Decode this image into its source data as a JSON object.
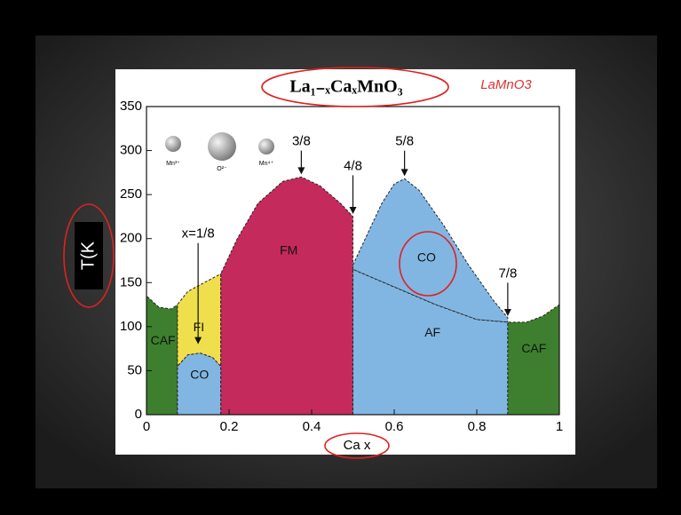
{
  "chart_data": {
    "type": "phase",
    "title": "La₁₋ₓCaₓMnO₃",
    "handwritten_note": "LaMnO3",
    "x_label": "Ca x",
    "y_label": "T(K",
    "ions": [
      "Mn³⁺",
      "O²⁻",
      "Mn⁴⁺"
    ],
    "xlim": [
      0,
      1
    ],
    "ylim": [
      0,
      350
    ],
    "xticks": [
      0,
      0.2,
      0.4,
      0.6,
      0.8,
      1
    ],
    "yticks": [
      0,
      50,
      100,
      150,
      200,
      250,
      300,
      350
    ],
    "regions": [
      {
        "name": "CAF",
        "color": "#3d7f2e",
        "x": [
          0,
          0,
          0.03,
          0.06,
          0.075,
          0.075
        ],
        "y": [
          0,
          135,
          122,
          120,
          125,
          0
        ]
      },
      {
        "name": "CO",
        "color": "#82b6e2",
        "x": [
          0.075,
          0.075,
          0.1,
          0.13,
          0.16,
          0.18,
          0.18
        ],
        "y": [
          0,
          55,
          68,
          70,
          65,
          55,
          0
        ]
      },
      {
        "name": "FI",
        "color": "#f0df4c",
        "x": [
          0.075,
          0.075,
          0.1,
          0.14,
          0.18,
          0.18,
          0.16,
          0.13,
          0.1
        ],
        "y": [
          55,
          125,
          140,
          150,
          160,
          55,
          65,
          70,
          68
        ]
      },
      {
        "name": "FM",
        "color": "#c52a5c",
        "x": [
          0.18,
          0.18,
          0.22,
          0.27,
          0.33,
          0.375,
          0.42,
          0.47,
          0.5,
          0.5
        ],
        "y": [
          0,
          160,
          200,
          240,
          265,
          270,
          260,
          240,
          225,
          0
        ]
      },
      {
        "name": "CO",
        "color": "#82b6e2",
        "x": [
          0.5,
          0.5,
          0.53,
          0.57,
          0.6,
          0.625,
          0.66,
          0.72,
          0.78,
          0.84,
          0.875,
          0.875,
          0.8,
          0.7,
          0.6
        ],
        "y": [
          165,
          170,
          200,
          240,
          262,
          268,
          255,
          215,
          170,
          130,
          110,
          105,
          108,
          125,
          145
        ]
      },
      {
        "name": "AF",
        "color": "#82b6e2",
        "x": [
          0.5,
          0.5,
          0.6,
          0.7,
          0.8,
          0.875,
          0.875
        ],
        "y": [
          0,
          165,
          145,
          125,
          108,
          105,
          0
        ]
      },
      {
        "name": "CAF",
        "color": "#3d7f2e",
        "x": [
          0.875,
          0.875,
          0.92,
          0.96,
          1,
          1
        ],
        "y": [
          0,
          105,
          105,
          112,
          125,
          0
        ]
      }
    ],
    "annotations": [
      {
        "text": "x=1/8",
        "x": 0.125,
        "y": 205,
        "y_end": 80
      },
      {
        "text": "3/8",
        "x": 0.375,
        "y": 310,
        "y_end": 273
      },
      {
        "text": "4/8",
        "x": 0.5,
        "y": 282,
        "y_end": 228
      },
      {
        "text": "5/8",
        "x": 0.625,
        "y": 310,
        "y_end": 271
      },
      {
        "text": "7/8",
        "x": 0.875,
        "y": 160,
        "y_end": 112
      }
    ]
  }
}
